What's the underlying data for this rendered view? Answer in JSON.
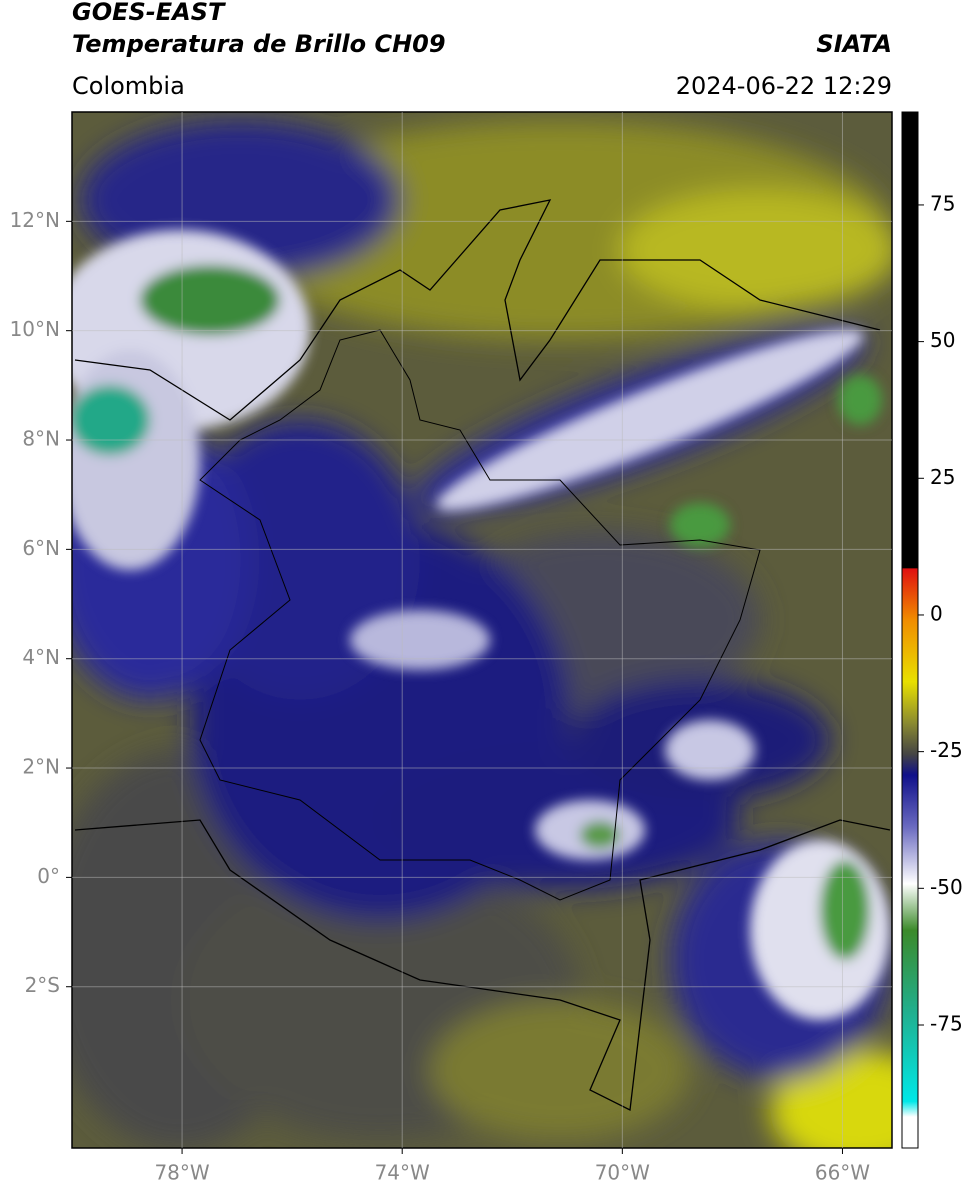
{
  "header": {
    "title": "GOES-EAST",
    "subtitle": "Temperatura de Brillo CH09",
    "source": "SIATA",
    "region": "Colombia",
    "datetime": "2024-06-22 12:29"
  },
  "map": {
    "xlim": [
      -80,
      -65.1
    ],
    "ylim": [
      -4.95,
      14
    ],
    "xticks": [
      {
        "value": -78,
        "label": "78°W"
      },
      {
        "value": -74,
        "label": "74°W"
      },
      {
        "value": -70,
        "label": "70°W"
      },
      {
        "value": -66,
        "label": "66°W"
      }
    ],
    "yticks": [
      {
        "value": 12,
        "label": "12°N"
      },
      {
        "value": 10,
        "label": "10°N"
      },
      {
        "value": 8,
        "label": "8°N"
      },
      {
        "value": 6,
        "label": "6°N"
      },
      {
        "value": 4,
        "label": "4°N"
      },
      {
        "value": 2,
        "label": "2°N"
      },
      {
        "value": 0,
        "label": "0°"
      },
      {
        "value": -2,
        "label": "2°S"
      }
    ],
    "grid": true
  },
  "colorbar": {
    "lim": [
      -97.5,
      92
    ],
    "ticks": [
      75,
      50,
      25,
      0,
      -25,
      -50,
      -75
    ]
  }
}
